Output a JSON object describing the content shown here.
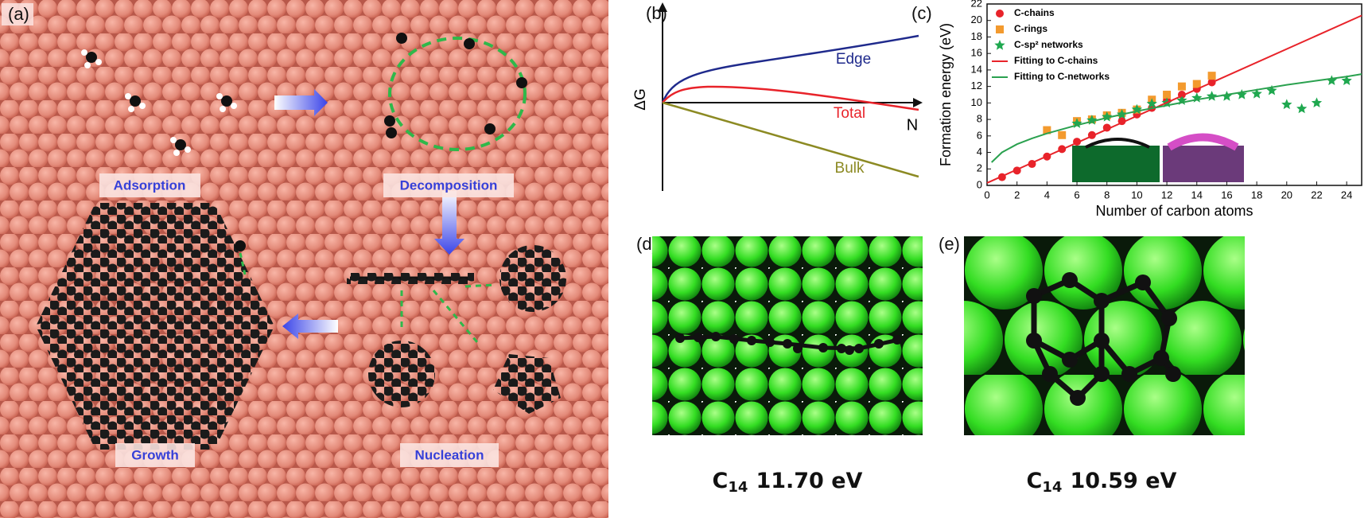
{
  "panels": {
    "a": {
      "label": "(a)",
      "stages": [
        "Adsorption",
        "Decomposition",
        "Growth",
        "Nucleation"
      ]
    },
    "b": {
      "label": "(b)",
      "ylabel": "ΔG",
      "xlabel": "N",
      "curves": [
        "Edge",
        "Total",
        "Bulk"
      ]
    },
    "d": {
      "label": "(d)",
      "caption": {
        "species": "C",
        "subscript": "14",
        "energy": "11.70 eV"
      }
    },
    "e": {
      "label": "(e)",
      "caption": {
        "species": "C",
        "subscript": "14",
        "energy": "10.59 eV"
      }
    }
  },
  "chart_data": {
    "type": "scatter",
    "label": "(c)",
    "xlabel": "Number of carbon atoms",
    "ylabel": "Formation energy (eV)",
    "xlim": [
      0,
      25
    ],
    "ylim": [
      0,
      22
    ],
    "xticks": [
      0,
      2,
      4,
      6,
      8,
      10,
      12,
      14,
      16,
      18,
      20,
      22,
      24
    ],
    "yticks": [
      0,
      2,
      4,
      6,
      8,
      10,
      12,
      14,
      16,
      18,
      20,
      22
    ],
    "legend": "upper left",
    "series": [
      {
        "name": "C-chains",
        "color": "#e8232a",
        "marker": "circle",
        "x": [
          1,
          2,
          3,
          4,
          5,
          6,
          7,
          8,
          9,
          10,
          11,
          12,
          13,
          14,
          15
        ],
        "values": [
          1.0,
          1.8,
          2.6,
          3.5,
          4.4,
          5.3,
          6.1,
          7.0,
          7.8,
          8.6,
          9.4,
          10.3,
          11.0,
          11.7,
          12.5
        ]
      },
      {
        "name": "C-rings",
        "color": "#f39a2e",
        "marker": "square",
        "x": [
          4,
          5,
          6,
          7,
          8,
          9,
          10,
          11,
          12,
          13,
          14,
          15
        ],
        "values": [
          6.7,
          6.1,
          7.8,
          8.0,
          8.5,
          8.8,
          9.2,
          10.4,
          11.0,
          12.0,
          12.3,
          13.3
        ]
      },
      {
        "name": "C-sp² networks",
        "color": "#1fa84f",
        "marker": "star",
        "x": [
          6,
          7,
          8,
          9,
          10,
          11,
          12,
          13,
          14,
          15,
          16,
          17,
          18,
          19,
          20,
          21,
          22,
          23,
          24
        ],
        "values": [
          7.5,
          7.9,
          8.3,
          8.6,
          9.2,
          9.9,
          10.0,
          10.3,
          10.6,
          10.8,
          10.8,
          11.0,
          11.1,
          11.5,
          9.8,
          9.3,
          10.0,
          12.7,
          12.7
        ]
      },
      {
        "name": "Fitting to C-chains",
        "color": "#e8232a",
        "marker": "none",
        "x": [
          0,
          25
        ],
        "values": [
          0.3,
          20.6
        ]
      },
      {
        "name": "Fitting to C-networks",
        "color": "#2aa14f",
        "marker": "none",
        "x": [
          0.3,
          1,
          2,
          3,
          4,
          6,
          8,
          10,
          12,
          14,
          16,
          18,
          20,
          22,
          24,
          25
        ],
        "values": [
          2.8,
          4.0,
          5.0,
          5.7,
          6.3,
          7.3,
          8.2,
          9.0,
          9.7,
          10.4,
          11.0,
          11.6,
          12.2,
          12.7,
          13.2,
          13.5
        ]
      }
    ]
  }
}
